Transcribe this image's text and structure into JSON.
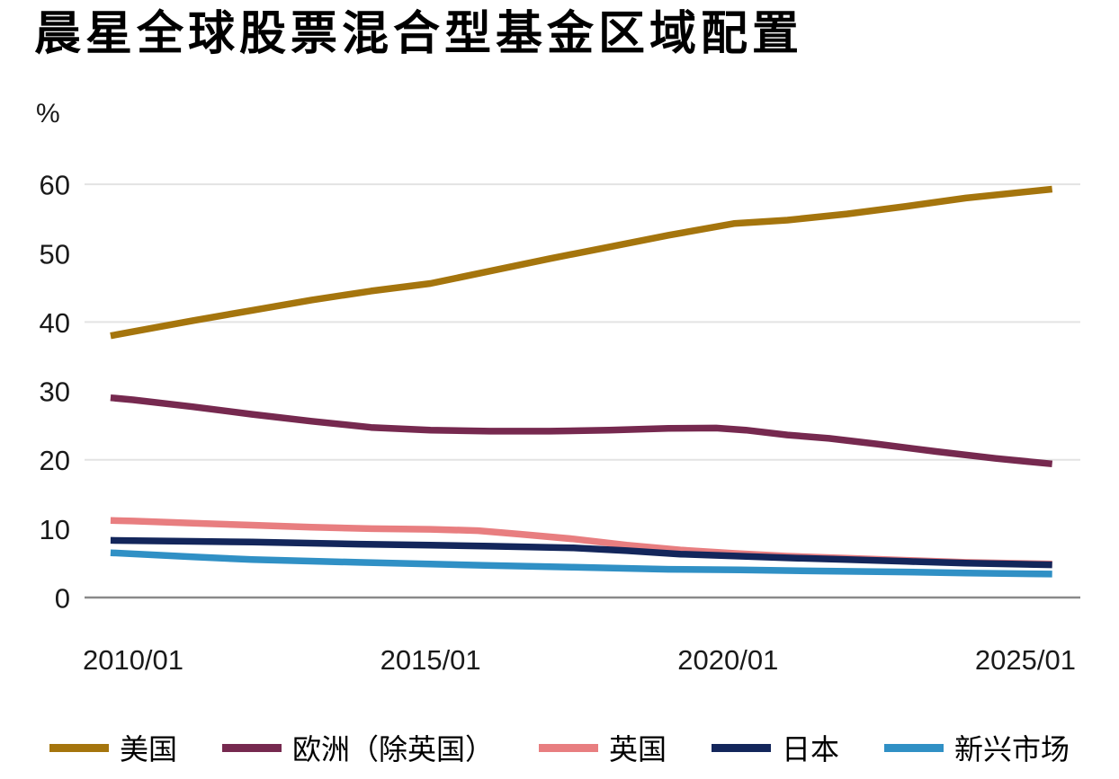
{
  "title": "晨星全球股票混合型基金区域配置",
  "colors": {
    "background": "#FFFFFF",
    "title_text": "#000000",
    "axis_text": "#1A1A1A",
    "gridline": "#E3E3E3",
    "zero_line": "#8A8A8A"
  },
  "y_axis": {
    "unit": "%",
    "ticks": [
      60,
      50,
      40,
      30,
      20,
      10,
      0
    ],
    "gridlines_at": [
      60,
      40,
      20
    ]
  },
  "x_axis": {
    "ticks": [
      "2010/01",
      "2015/01",
      "2020/01",
      "2025/01"
    ]
  },
  "legend": {
    "items": [
      {
        "label": "美国",
        "color": "#A5750D"
      },
      {
        "label": "欧洲（除英国）",
        "color": "#76294F"
      },
      {
        "label": "英国",
        "color": "#E87E80"
      },
      {
        "label": "日本",
        "color": "#13265B"
      },
      {
        "label": "新兴市场",
        "color": "#3090C5"
      }
    ]
  },
  "chart_data": {
    "type": "line",
    "title": "晨星全球股票混合型基金区域配置",
    "xlabel": "",
    "ylabel": "%",
    "ylim": [
      0,
      62
    ],
    "x_tick_labels": [
      "2010/01",
      "2015/01",
      "2020/01",
      "2025/01"
    ],
    "grid": "horizontal only, at 20/40/60",
    "legend_position": "bottom",
    "x_unit": "decimal_year",
    "series": [
      {
        "name": "美国",
        "color": "#A5750D",
        "points": [
          [
            2009.62,
            38.0
          ],
          [
            2010,
            38.6
          ],
          [
            2011,
            40.2
          ],
          [
            2012,
            41.7
          ],
          [
            2013,
            43.2
          ],
          [
            2014,
            44.5
          ],
          [
            2015,
            45.6
          ],
          [
            2016,
            47.4
          ],
          [
            2017,
            49.2
          ],
          [
            2018,
            50.9
          ],
          [
            2019,
            52.6
          ],
          [
            2020.1,
            54.3
          ],
          [
            2021,
            54.8
          ],
          [
            2022,
            55.7
          ],
          [
            2023,
            56.8
          ],
          [
            2024,
            58.0
          ],
          [
            2025.45,
            59.3
          ]
        ]
      },
      {
        "name": "欧洲（除英国）",
        "color": "#76294F",
        "points": [
          [
            2009.62,
            29.0
          ],
          [
            2010,
            28.7
          ],
          [
            2011,
            27.7
          ],
          [
            2012,
            26.6
          ],
          [
            2013,
            25.6
          ],
          [
            2014,
            24.7
          ],
          [
            2015,
            24.3
          ],
          [
            2016,
            24.15
          ],
          [
            2017,
            24.15
          ],
          [
            2018,
            24.3
          ],
          [
            2019,
            24.55
          ],
          [
            2019.8,
            24.6
          ],
          [
            2020.3,
            24.3
          ],
          [
            2021,
            23.6
          ],
          [
            2021.7,
            23.1
          ],
          [
            2022.5,
            22.3
          ],
          [
            2023.5,
            21.2
          ],
          [
            2024.5,
            20.2
          ],
          [
            2025.45,
            19.4
          ]
        ]
      },
      {
        "name": "英国",
        "color": "#E87E80",
        "points": [
          [
            2009.62,
            11.2
          ],
          [
            2010,
            11.1
          ],
          [
            2011,
            10.8
          ],
          [
            2012,
            10.5
          ],
          [
            2013,
            10.2
          ],
          [
            2014,
            10.0
          ],
          [
            2015,
            9.9
          ],
          [
            2015.8,
            9.7
          ],
          [
            2016.5,
            9.2
          ],
          [
            2017.4,
            8.5
          ],
          [
            2018.3,
            7.6
          ],
          [
            2019.2,
            6.9
          ],
          [
            2020.1,
            6.4
          ],
          [
            2021,
            6.0
          ],
          [
            2022,
            5.7
          ],
          [
            2023,
            5.4
          ],
          [
            2024,
            5.1
          ],
          [
            2025.45,
            4.85
          ]
        ]
      },
      {
        "name": "日本",
        "color": "#13265B",
        "points": [
          [
            2009.62,
            8.3
          ],
          [
            2011,
            8.15
          ],
          [
            2012,
            8.05
          ],
          [
            2013.8,
            7.75
          ],
          [
            2015,
            7.6
          ],
          [
            2016,
            7.45
          ],
          [
            2017.4,
            7.2
          ],
          [
            2018.3,
            6.8
          ],
          [
            2019.2,
            6.3
          ],
          [
            2020.2,
            6.0
          ],
          [
            2021,
            5.75
          ],
          [
            2022,
            5.5
          ],
          [
            2023,
            5.25
          ],
          [
            2024,
            5.0
          ],
          [
            2025.45,
            4.75
          ]
        ]
      },
      {
        "name": "新兴市场",
        "color": "#3090C5",
        "points": [
          [
            2009.62,
            6.5
          ],
          [
            2011,
            5.9
          ],
          [
            2012,
            5.5
          ],
          [
            2013.8,
            5.1
          ],
          [
            2015,
            4.85
          ],
          [
            2016,
            4.65
          ],
          [
            2017.4,
            4.4
          ],
          [
            2019,
            4.1
          ],
          [
            2020.2,
            4.0
          ],
          [
            2021.5,
            3.85
          ],
          [
            2023,
            3.7
          ],
          [
            2024,
            3.55
          ],
          [
            2025.45,
            3.4
          ]
        ]
      }
    ]
  }
}
